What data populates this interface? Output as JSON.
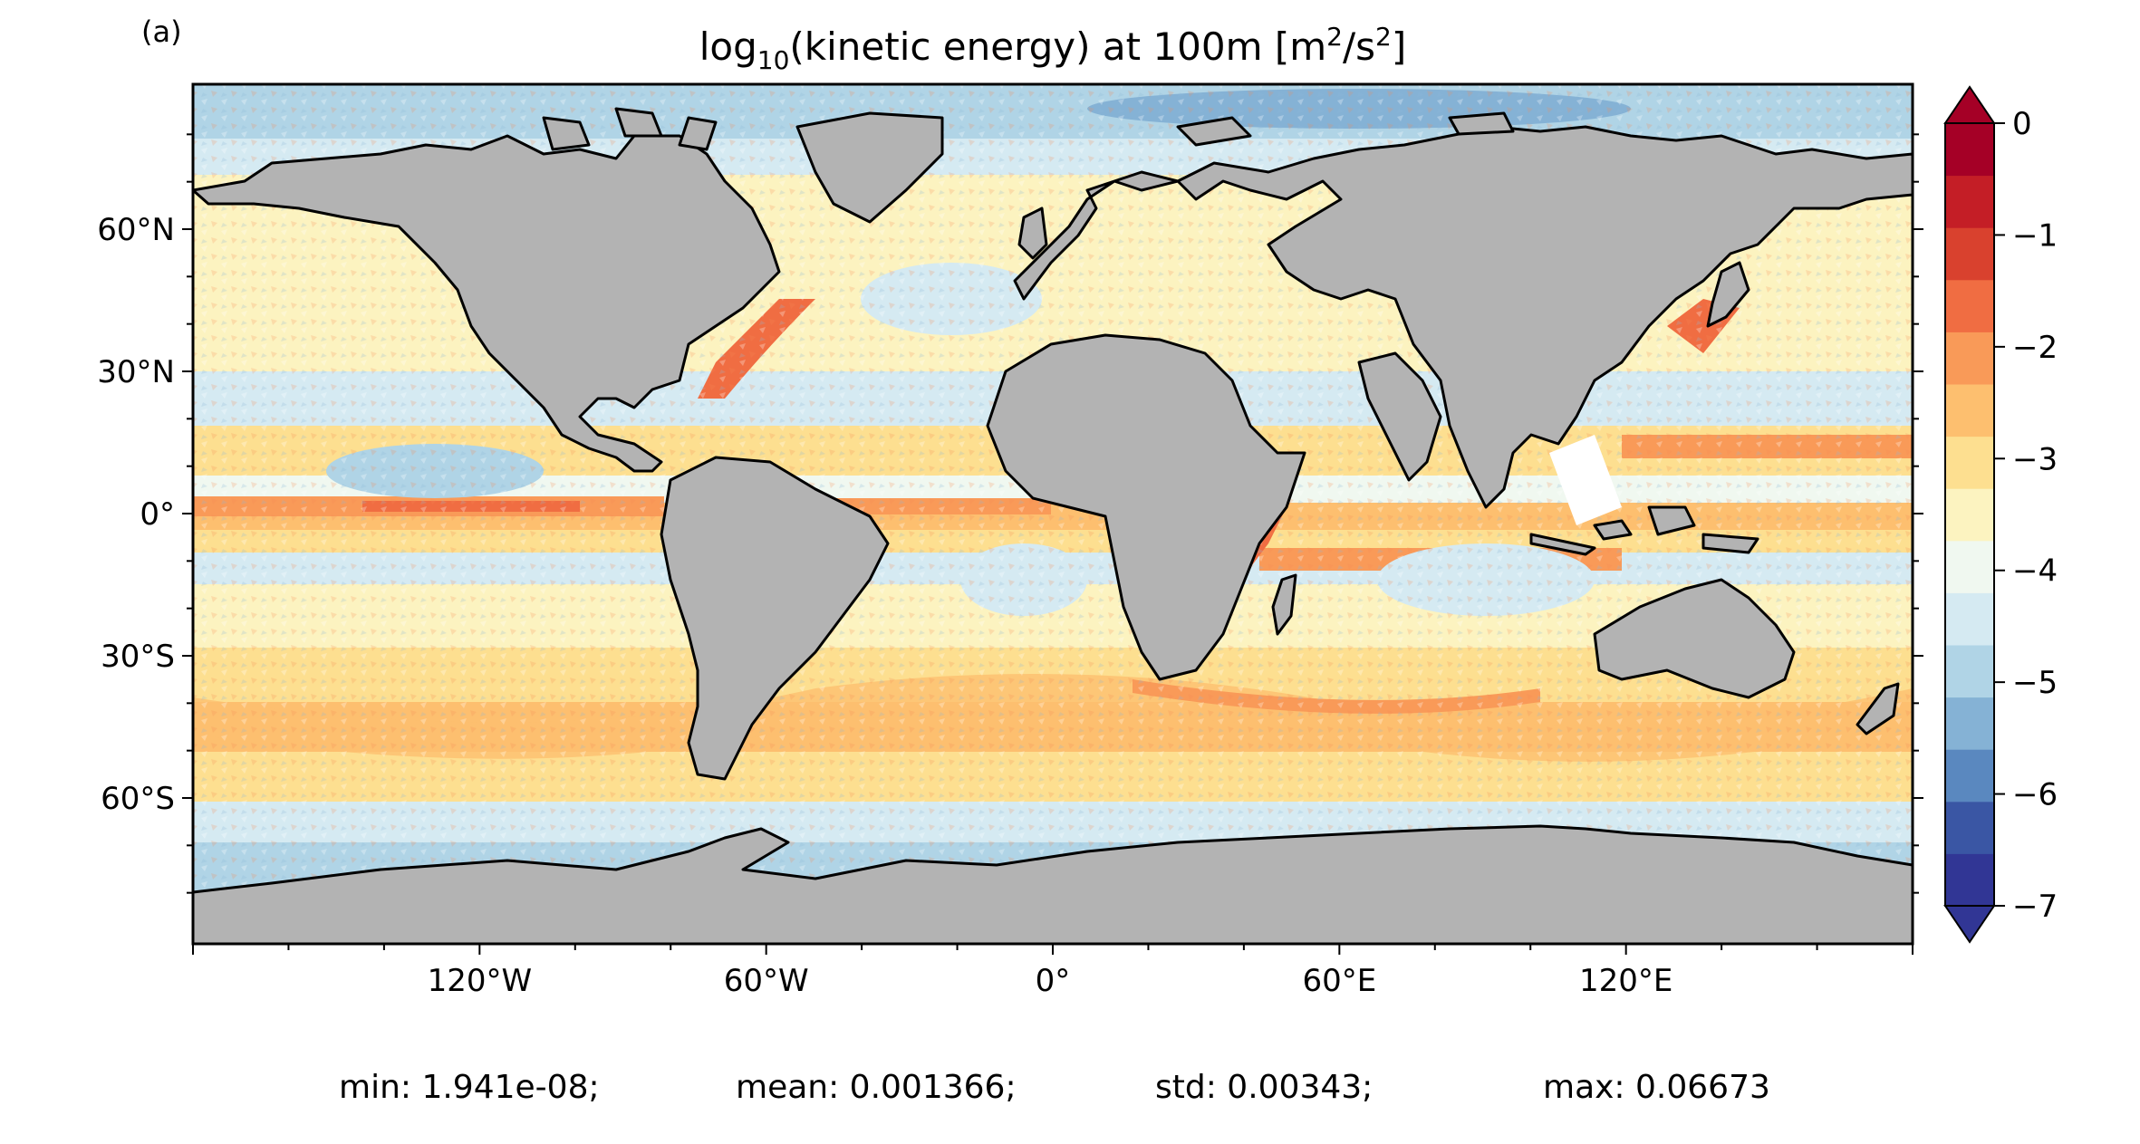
{
  "panel_label": "(a)",
  "title_prefix": "log",
  "title_sub": "10",
  "title_rest": "(kinetic energy) at 100m [m",
  "title_sup": "2",
  "title_mid": "/s",
  "title_sup2": "2",
  "title_end": "]",
  "lat_ticks": [
    {
      "label": "60°N",
      "value": 60
    },
    {
      "label": "30°N",
      "value": 30
    },
    {
      "label": "0°",
      "value": 0
    },
    {
      "label": "30°S",
      "value": -30
    },
    {
      "label": "60°S",
      "value": -60
    }
  ],
  "lon_ticks": [
    {
      "label": "120°W",
      "value": -120
    },
    {
      "label": "60°W",
      "value": -60
    },
    {
      "label": "0°",
      "value": 0
    },
    {
      "label": "60°E",
      "value": 60
    },
    {
      "label": "120°E",
      "value": 120
    }
  ],
  "colorbar": {
    "ticks": [
      "0",
      "−1",
      "−2",
      "−3",
      "−4",
      "−5",
      "−6",
      "−7"
    ],
    "tick_values": [
      0,
      -1,
      -2,
      -3,
      -4,
      -5,
      -6,
      -7
    ],
    "range": [
      -7,
      0
    ],
    "levels": 15,
    "colors": [
      "#313695",
      "#3a56a4",
      "#5a88bf",
      "#85b2d5",
      "#b0d4e6",
      "#d5eaf2",
      "#f0f8f0",
      "#fcf3c0",
      "#fddf90",
      "#fdbf6f",
      "#f99a58",
      "#f06d42",
      "#d9412e",
      "#c41e26",
      "#a50026"
    ],
    "extend": "both"
  },
  "stats": {
    "min": "min: 1.941e-08;",
    "mean": "mean: 0.001366;",
    "std": "std: 0.00343;",
    "max": "max: 0.06673"
  },
  "colors": {
    "land": "#b3b3b3",
    "coast": "#000000",
    "ice": "#ffffff"
  }
}
